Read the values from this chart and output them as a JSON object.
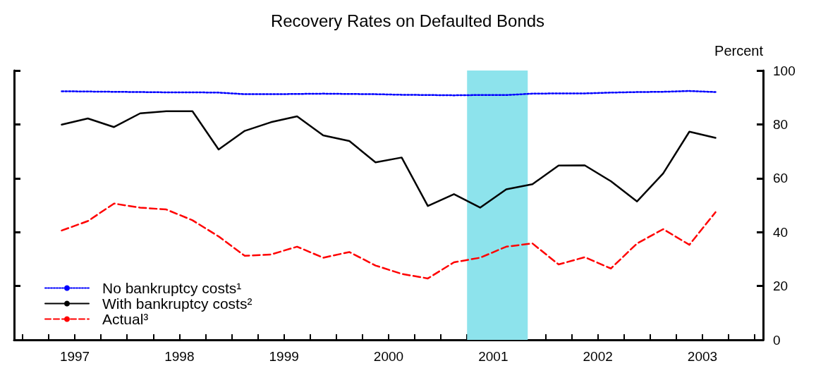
{
  "chart_data": {
    "type": "line",
    "title": "Recovery Rates on Defaulted Bonds",
    "ylabel": "Percent",
    "x": [
      1997.375,
      1997.625,
      1997.875,
      1998.125,
      1998.375,
      1998.625,
      1998.875,
      1999.125,
      1999.375,
      1999.625,
      1999.875,
      2000.125,
      2000.375,
      2000.625,
      2000.875,
      2001.125,
      2001.375,
      2001.625,
      2001.875,
      2002.125,
      2002.375,
      2002.625,
      2002.875,
      2003.125,
      2003.375,
      2003.625
    ],
    "series": [
      {
        "name": "No bankruptcy costs¹",
        "color": "#0000ff",
        "line_style": "dotted",
        "values": [
          92.3,
          92.2,
          92.1,
          92.0,
          91.9,
          91.9,
          91.8,
          91.2,
          91.2,
          91.3,
          91.4,
          91.3,
          91.2,
          91.0,
          90.9,
          90.8,
          90.9,
          90.9,
          91.4,
          91.5,
          91.5,
          91.8,
          92.0,
          92.1,
          92.4,
          92.0
        ]
      },
      {
        "name": "With bankruptcy costs²",
        "color": "#000000",
        "line_style": "solid",
        "values": [
          79.9,
          82.2,
          79.0,
          84.1,
          84.9,
          84.9,
          70.7,
          77.6,
          80.8,
          83.0,
          75.9,
          73.8,
          65.9,
          67.7,
          49.7,
          54.1,
          49.1,
          55.9,
          57.8,
          64.7,
          64.8,
          58.9,
          51.4,
          61.8,
          77.3,
          75.0
        ]
      },
      {
        "name": "Actual³",
        "color": "#ff0000",
        "line_style": "dashed",
        "values": [
          40.6,
          44.1,
          50.6,
          49.1,
          48.4,
          44.4,
          38.4,
          31.2,
          31.7,
          34.6,
          30.5,
          32.6,
          27.6,
          24.5,
          22.8,
          28.8,
          30.5,
          34.6,
          35.8,
          28.0,
          30.7,
          26.5,
          35.8,
          41.1,
          35.3,
          47.4
        ]
      }
    ],
    "xlim": [
      1996.92,
      2004.08
    ],
    "xticks": [
      {
        "value": 1997,
        "label": null
      },
      {
        "value": 1997.25,
        "label": null
      },
      {
        "value": 1997.5,
        "label": "1997"
      },
      {
        "value": 1997.75,
        "label": null
      },
      {
        "value": 1998,
        "label": null
      },
      {
        "value": 1998.25,
        "label": null
      },
      {
        "value": 1998.5,
        "label": "1998"
      },
      {
        "value": 1998.75,
        "label": null
      },
      {
        "value": 1999,
        "label": null
      },
      {
        "value": 1999.25,
        "label": null
      },
      {
        "value": 1999.5,
        "label": "1999"
      },
      {
        "value": 1999.75,
        "label": null
      },
      {
        "value": 2000,
        "label": null
      },
      {
        "value": 2000.25,
        "label": null
      },
      {
        "value": 2000.5,
        "label": "2000"
      },
      {
        "value": 2000.75,
        "label": null
      },
      {
        "value": 2001,
        "label": null
      },
      {
        "value": 2001.25,
        "label": null
      },
      {
        "value": 2001.5,
        "label": "2001"
      },
      {
        "value": 2001.75,
        "label": null
      },
      {
        "value": 2002,
        "label": null
      },
      {
        "value": 2002.25,
        "label": null
      },
      {
        "value": 2002.5,
        "label": "2002"
      },
      {
        "value": 2002.75,
        "label": null
      },
      {
        "value": 2003,
        "label": null
      },
      {
        "value": 2003.25,
        "label": null
      },
      {
        "value": 2003.5,
        "label": "2003"
      },
      {
        "value": 2003.75,
        "label": null
      },
      {
        "value": 2004,
        "label": null
      }
    ],
    "ylim": [
      0,
      100
    ],
    "yticks": [
      0,
      20,
      40,
      60,
      80,
      100
    ],
    "bands": [
      {
        "axis": "x",
        "from": 2001.25,
        "to": 2001.83,
        "color": "#8de3ec"
      }
    ],
    "legend": "bottom left",
    "grid": false,
    "marker": "none"
  }
}
